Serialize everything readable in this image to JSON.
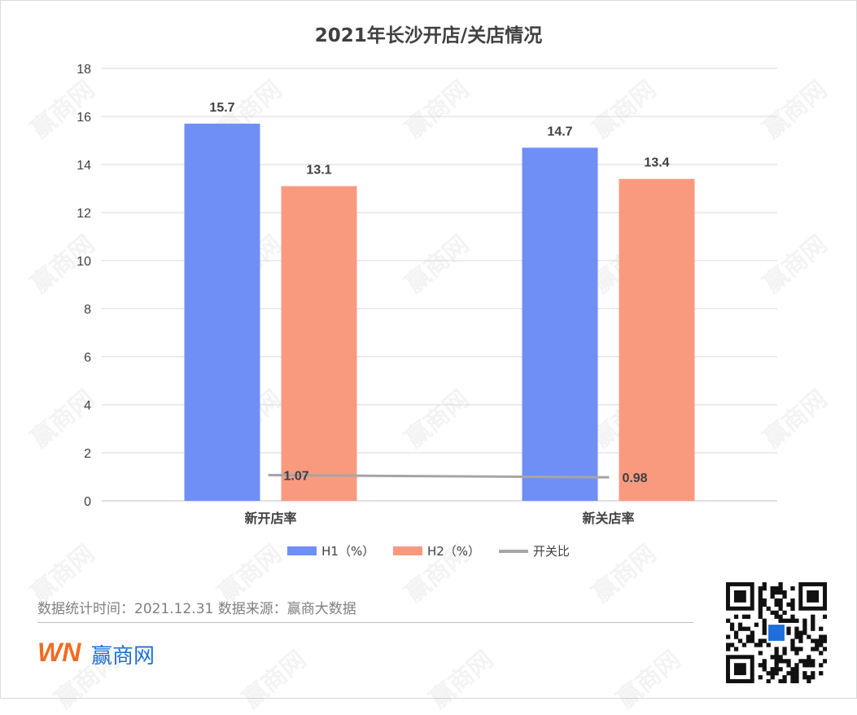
{
  "chart_data": {
    "type": "bar",
    "title": "2021年长沙开店/关店情况",
    "categories": [
      "新开店率",
      "新关店率"
    ],
    "series": [
      {
        "name": "H1（%）",
        "type": "bar",
        "values": [
          15.7,
          14.7
        ],
        "labels": [
          "15.7",
          "14.7"
        ],
        "color": "#6f8ff7"
      },
      {
        "name": "H2（%）",
        "type": "bar",
        "values": [
          13.1,
          13.4
        ],
        "labels": [
          "13.1",
          "13.4"
        ],
        "color": "#f99a7f"
      },
      {
        "name": "开关比",
        "type": "line",
        "values": [
          1.07,
          0.98
        ],
        "labels": [
          "1.07",
          "0.98"
        ],
        "color": "#a5a5a5"
      }
    ],
    "ylim": [
      0,
      18
    ],
    "yticks": [
      "0",
      "2",
      "4",
      "6",
      "8",
      "10",
      "12",
      "14",
      "16",
      "18"
    ],
    "grid": true,
    "legend_position": "bottom"
  },
  "footer": {
    "note": "数据统计时间：2021.12.31  数据来源：赢商大数据",
    "brand_name": "赢商网",
    "brand_mark": "WN"
  },
  "watermark": {
    "text": "赢商网"
  },
  "colors": {
    "h1": "#6f8ff7",
    "h2": "#f99a7f",
    "ratio": "#a5a5a5",
    "grid": "#d9d9d9",
    "axis_text": "#404040",
    "brand_blue": "#1e6fd9",
    "brand_orange": "#f26b21"
  }
}
